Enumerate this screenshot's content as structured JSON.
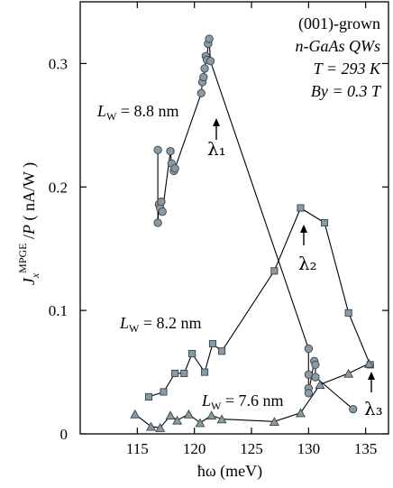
{
  "chart_data": {
    "type": "scatter",
    "xlabel": "ħω (meV)",
    "ylabel": "J_x^MPGE / P ( nA/W )",
    "xlim": [
      110,
      137
    ],
    "ylim": [
      0,
      0.35
    ],
    "x_ticks": [
      115,
      120,
      125,
      130,
      135
    ],
    "y_ticks": [
      0,
      0.1,
      0.2,
      0.3
    ],
    "y_tick_labels": [
      "0",
      "0.1",
      "0.2",
      "0.3"
    ],
    "annotation": {
      "line1": "(001)-grown",
      "line2": "n-GaAs QWs",
      "line3": "T = 293 K",
      "line4": "By = 0.3 T"
    },
    "series": [
      {
        "name": "LW = 8.8 nm",
        "marker": "circle",
        "points": [
          [
            116.8,
            0.23
          ],
          [
            116.8,
            0.171
          ],
          [
            116.9,
            0.186
          ],
          [
            117.0,
            0.183
          ],
          [
            117.1,
            0.188
          ],
          [
            117.2,
            0.18
          ],
          [
            117.9,
            0.229
          ],
          [
            118.0,
            0.219
          ],
          [
            118.2,
            0.213
          ],
          [
            118.3,
            0.215
          ],
          [
            120.6,
            0.276
          ],
          [
            120.7,
            0.285
          ],
          [
            120.8,
            0.289
          ],
          [
            120.9,
            0.296
          ],
          [
            121.0,
            0.306
          ],
          [
            121.1,
            0.303
          ],
          [
            121.2,
            0.316
          ],
          [
            121.3,
            0.32
          ],
          [
            121.4,
            0.302
          ],
          [
            130.0,
            0.069
          ],
          [
            130.0,
            0.048
          ],
          [
            130.0,
            0.037
          ],
          [
            130.0,
            0.033
          ],
          [
            130.5,
            0.059
          ],
          [
            130.6,
            0.056
          ],
          [
            130.6,
            0.046
          ],
          [
            133.9,
            0.02
          ]
        ]
      },
      {
        "name": "LW = 8.2 nm",
        "marker": "square",
        "points": [
          [
            116.0,
            0.03
          ],
          [
            117.3,
            0.034
          ],
          [
            118.3,
            0.049
          ],
          [
            119.1,
            0.049
          ],
          [
            119.8,
            0.065
          ],
          [
            120.9,
            0.05
          ],
          [
            121.6,
            0.073
          ],
          [
            122.4,
            0.067
          ],
          [
            127.0,
            0.132
          ],
          [
            129.3,
            0.183
          ],
          [
            131.4,
            0.171
          ],
          [
            133.5,
            0.098
          ],
          [
            135.4,
            0.056
          ]
        ]
      },
      {
        "name": "LW = 7.6 nm",
        "marker": "triangle",
        "points": [
          [
            114.8,
            0.016
          ],
          [
            116.2,
            0.006
          ],
          [
            117.0,
            0.005
          ],
          [
            117.9,
            0.015
          ],
          [
            118.5,
            0.011
          ],
          [
            119.5,
            0.016
          ],
          [
            120.5,
            0.009
          ],
          [
            121.5,
            0.015
          ],
          [
            122.4,
            0.012
          ],
          [
            127.0,
            0.01
          ],
          [
            129.3,
            0.017
          ],
          [
            131.0,
            0.04
          ],
          [
            133.5,
            0.049
          ],
          [
            135.3,
            0.057
          ]
        ]
      }
    ],
    "series_labels": {
      "s88_pre": "L",
      "s88_sub": "W",
      "s88_post": " = 8.8 nm",
      "s82_pre": "L",
      "s82_sub": "W",
      "s82_post": " = 8.2 nm",
      "s76_pre": "L",
      "s76_sub": "W",
      "s76_post": " = 7.6 nm"
    },
    "lambda_labels": {
      "l1": "λ₁",
      "l2": "λ₂",
      "l3": "λ₃"
    }
  },
  "colors": {
    "marker_fill": "#8a9aa4",
    "marker_stroke": "#3a444a",
    "line": "#000000"
  }
}
